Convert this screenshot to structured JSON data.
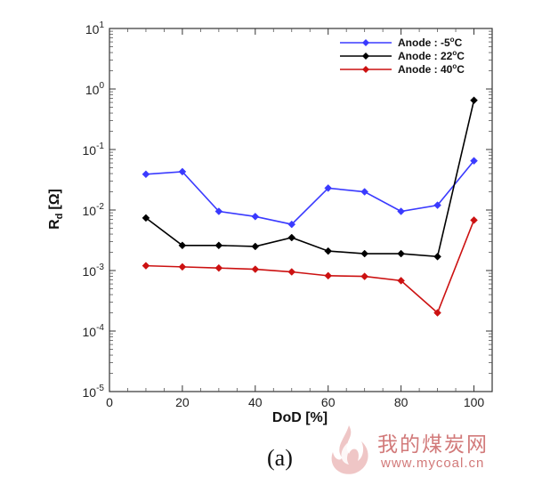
{
  "chart_data": {
    "type": "line",
    "title": "",
    "xlabel": "DoD [%]",
    "ylabel_main": "R",
    "ylabel_sub": "d",
    "ylabel_unit": "[Ω]",
    "xlim": [
      0,
      105
    ],
    "ylim": [
      1e-05,
      10
    ],
    "y_scale": "log",
    "grid": false,
    "legend_position": "top-right",
    "x_ticks": [
      0,
      20,
      40,
      60,
      80,
      100
    ],
    "y_ticks": [
      {
        "value": 1e-05,
        "mantissa": "10",
        "exponent": "-5"
      },
      {
        "value": 0.0001,
        "mantissa": "10",
        "exponent": "-4"
      },
      {
        "value": 0.001,
        "mantissa": "10",
        "exponent": "-3"
      },
      {
        "value": 0.01,
        "mantissa": "10",
        "exponent": "-2"
      },
      {
        "value": 0.1,
        "mantissa": "10",
        "exponent": "-1"
      },
      {
        "value": 1,
        "mantissa": "10",
        "exponent": "0"
      },
      {
        "value": 10,
        "mantissa": "10",
        "exponent": "1"
      }
    ],
    "x": [
      10,
      20,
      30,
      40,
      50,
      60,
      70,
      80,
      90,
      100
    ],
    "series": [
      {
        "label_prefix": "Anode : -5",
        "label_sup": "o",
        "label_suffix": "C",
        "color": "#3a3aff",
        "values": [
          0.039,
          0.043,
          0.0095,
          0.0078,
          0.0058,
          0.023,
          0.02,
          0.0095,
          0.012,
          0.065
        ]
      },
      {
        "label_prefix": "Anode : 22",
        "label_sup": "o",
        "label_suffix": "C",
        "color": "#000000",
        "values": [
          0.0074,
          0.0026,
          0.0026,
          0.0025,
          0.0035,
          0.0021,
          0.0019,
          0.0019,
          0.0017,
          0.65
        ]
      },
      {
        "label_prefix": "Anode : 40",
        "label_sup": "o",
        "label_suffix": "C",
        "color": "#cc1111",
        "values": [
          0.0012,
          0.00115,
          0.0011,
          0.00105,
          0.00095,
          0.00082,
          0.0008,
          0.00068,
          0.0002,
          0.0068
        ]
      }
    ]
  },
  "caption": "(a)",
  "watermark": {
    "title": "我的煤炭网",
    "url": "www.mycoal.cn",
    "color": "#d27a7a"
  }
}
